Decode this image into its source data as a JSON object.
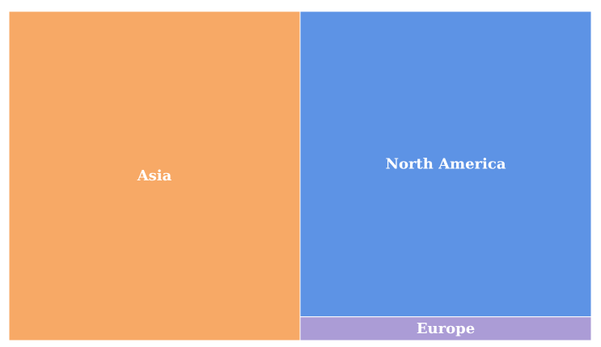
{
  "chart_data": {
    "type": "treemap",
    "title": "",
    "items": [
      {
        "label": "Asia",
        "value": 50,
        "color": "#F7A966"
      },
      {
        "label": "North America",
        "value": 46.4,
        "color": "#5D93E5"
      },
      {
        "label": "Europe",
        "value": 3.6,
        "color": "#AB9CD6"
      }
    ]
  }
}
